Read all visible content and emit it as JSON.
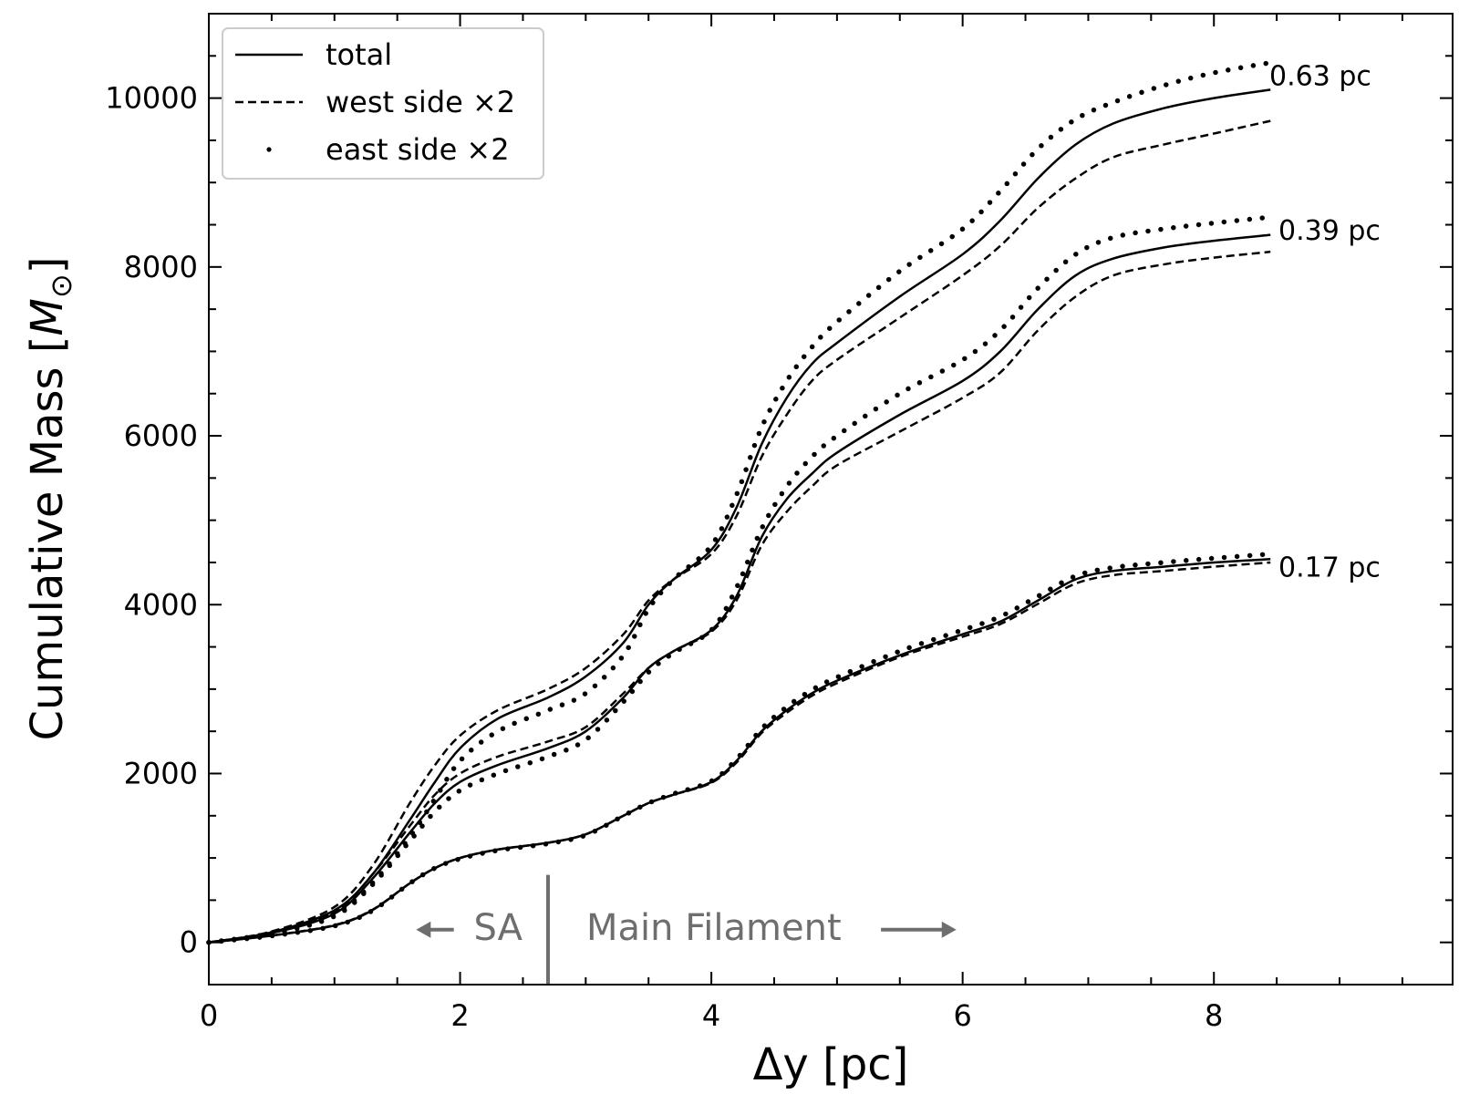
{
  "chart_data": {
    "type": "line",
    "title": "",
    "xlabel": "Δy  [pc]",
    "ylabel_main": "Cumulative Mass [",
    "ylabel_symbol": "M",
    "ylabel_sub": "⊙",
    "ylabel_end": "]",
    "xlim": [
      0,
      9.9
    ],
    "ylim": [
      -500,
      11000
    ],
    "x_ticks": [
      0,
      2,
      4,
      6,
      8
    ],
    "x_tick_labels": [
      "0",
      "2",
      "4",
      "6",
      "8"
    ],
    "x_minor_step": 0.5,
    "y_ticks": [
      0,
      2000,
      4000,
      6000,
      8000,
      10000
    ],
    "y_tick_labels": [
      "0",
      "2000",
      "4000",
      "6000",
      "8000",
      "10000"
    ],
    "y_minor_step": 500,
    "legend": {
      "placement": "top-left",
      "entries": [
        {
          "label": "total",
          "style": "solid"
        },
        {
          "label": "west side ×2",
          "style": "dashed"
        },
        {
          "label": "east side ×2",
          "style": "dotted"
        }
      ]
    },
    "groups": [
      {
        "label": "0.63 pc",
        "series": [
          {
            "name": "total",
            "style": "solid",
            "x": [
              0,
              0.5,
              1.0,
              1.3,
              1.6,
              1.8,
              2.0,
              2.3,
              2.7,
              3.0,
              3.3,
              3.5,
              3.7,
              4.0,
              4.2,
              4.4,
              4.6,
              4.8,
              5.0,
              5.5,
              6.0,
              6.3,
              6.6,
              6.9,
              7.2,
              7.6,
              8.0,
              8.45
            ],
            "y": [
              0,
              120,
              380,
              800,
              1450,
              1900,
              2300,
              2650,
              2900,
              3150,
              3550,
              4000,
              4300,
              4650,
              5150,
              5900,
              6450,
              6850,
              7100,
              7650,
              8150,
              8550,
              9050,
              9450,
              9700,
              9880,
              10000,
              10100
            ]
          },
          {
            "name": "west side ×2",
            "style": "dashed",
            "x": [
              0,
              0.5,
              1.0,
              1.3,
              1.6,
              1.8,
              2.0,
              2.3,
              2.7,
              3.0,
              3.3,
              3.5,
              3.7,
              4.0,
              4.2,
              4.4,
              4.6,
              4.8,
              5.0,
              5.5,
              6.0,
              6.3,
              6.6,
              6.9,
              7.2,
              7.6,
              8.0,
              8.45
            ],
            "y": [
              0,
              130,
              420,
              900,
              1650,
              2100,
              2450,
              2750,
              3000,
              3250,
              3650,
              4050,
              4300,
              4600,
              5050,
              5750,
              6250,
              6650,
              6900,
              7400,
              7900,
              8250,
              8700,
              9050,
              9300,
              9450,
              9580,
              9730
            ]
          },
          {
            "name": "east side ×2",
            "style": "dotted",
            "x": [
              0,
              0.5,
              1.0,
              1.3,
              1.6,
              1.8,
              2.0,
              2.3,
              2.7,
              3.0,
              3.3,
              3.5,
              3.7,
              4.0,
              4.2,
              4.4,
              4.6,
              4.8,
              5.0,
              5.5,
              6.0,
              6.3,
              6.6,
              6.9,
              7.2,
              7.6,
              8.0,
              8.45
            ],
            "y": [
              0,
              110,
              340,
              700,
              1250,
              1700,
              2150,
              2500,
              2750,
              2950,
              3400,
              3950,
              4300,
              4700,
              5300,
              6100,
              6650,
              7050,
              7350,
              7950,
              8450,
              8900,
              9400,
              9750,
              9950,
              10150,
              10300,
              10420
            ]
          }
        ]
      },
      {
        "label": "0.39 pc",
        "series": [
          {
            "name": "total",
            "style": "solid",
            "x": [
              0,
              0.5,
              1.0,
              1.3,
              1.6,
              1.8,
              2.0,
              2.3,
              2.7,
              3.0,
              3.3,
              3.5,
              3.7,
              4.0,
              4.2,
              4.4,
              4.6,
              4.8,
              5.0,
              5.5,
              6.0,
              6.3,
              6.6,
              6.9,
              7.2,
              7.6,
              8.0,
              8.45
            ],
            "y": [
              0,
              110,
              340,
              750,
              1300,
              1650,
              1900,
              2100,
              2300,
              2500,
              2900,
              3250,
              3450,
              3700,
              4100,
              4800,
              5250,
              5550,
              5800,
              6250,
              6650,
              7000,
              7500,
              7900,
              8100,
              8230,
              8310,
              8380
            ]
          },
          {
            "name": "west side ×2",
            "style": "dashed",
            "x": [
              0,
              0.5,
              1.0,
              1.3,
              1.6,
              1.8,
              2.0,
              2.3,
              2.7,
              3.0,
              3.3,
              3.5,
              3.7,
              4.0,
              4.2,
              4.4,
              4.6,
              4.8,
              5.0,
              5.5,
              6.0,
              6.3,
              6.6,
              6.9,
              7.2,
              7.6,
              8.0,
              8.45
            ],
            "y": [
              0,
              115,
              360,
              800,
              1380,
              1750,
              2000,
              2200,
              2380,
              2550,
              2950,
              3250,
              3450,
              3680,
              4050,
              4700,
              5100,
              5400,
              5650,
              6050,
              6450,
              6750,
              7250,
              7650,
              7900,
              8030,
              8110,
              8180
            ]
          },
          {
            "name": "east side ×2",
            "style": "dotted",
            "x": [
              0,
              0.5,
              1.0,
              1.3,
              1.6,
              1.8,
              2.0,
              2.3,
              2.7,
              3.0,
              3.3,
              3.5,
              3.7,
              4.0,
              4.2,
              4.4,
              4.6,
              4.8,
              5.0,
              5.5,
              6.0,
              6.3,
              6.6,
              6.9,
              7.2,
              7.6,
              8.0,
              8.45
            ],
            "y": [
              0,
              100,
              310,
              680,
              1200,
              1550,
              1800,
              2000,
              2200,
              2400,
              2850,
              3200,
              3430,
              3700,
              4200,
              4900,
              5400,
              5750,
              6000,
              6500,
              6900,
              7250,
              7750,
              8150,
              8350,
              8450,
              8520,
              8590
            ]
          }
        ]
      },
      {
        "label": "0.17 pc",
        "series": [
          {
            "name": "total",
            "style": "solid",
            "x": [
              0,
              0.5,
              1.0,
              1.3,
              1.6,
              1.8,
              2.0,
              2.3,
              2.7,
              3.0,
              3.3,
              3.5,
              3.7,
              4.0,
              4.2,
              4.4,
              4.6,
              4.8,
              5.0,
              5.5,
              6.0,
              6.3,
              6.6,
              6.9,
              7.2,
              7.6,
              8.0,
              8.45
            ],
            "y": [
              0,
              80,
              200,
              380,
              700,
              880,
              1000,
              1100,
              1180,
              1280,
              1500,
              1650,
              1750,
              1900,
              2150,
              2500,
              2750,
              2950,
              3100,
              3400,
              3650,
              3800,
              4050,
              4300,
              4400,
              4450,
              4500,
              4540
            ]
          },
          {
            "name": "west side ×2",
            "style": "dashed",
            "x": [
              0,
              0.5,
              1.0,
              1.3,
              1.6,
              1.8,
              2.0,
              2.3,
              2.7,
              3.0,
              3.3,
              3.5,
              3.7,
              4.0,
              4.2,
              4.4,
              4.6,
              4.8,
              5.0,
              5.5,
              6.0,
              6.3,
              6.6,
              6.9,
              7.2,
              7.6,
              8.0,
              8.45
            ],
            "y": [
              0,
              82,
              205,
              385,
              700,
              880,
              1000,
              1100,
              1180,
              1280,
              1500,
              1650,
              1750,
              1890,
              2130,
              2480,
              2720,
              2920,
              3070,
              3380,
              3620,
              3770,
              4010,
              4250,
              4350,
              4400,
              4450,
              4500
            ]
          },
          {
            "name": "east side ×2",
            "style": "dotted",
            "x": [
              0,
              0.5,
              1.0,
              1.3,
              1.6,
              1.8,
              2.0,
              2.3,
              2.7,
              3.0,
              3.3,
              3.5,
              3.7,
              4.0,
              4.2,
              4.4,
              4.6,
              4.8,
              5.0,
              5.5,
              6.0,
              6.3,
              6.6,
              6.9,
              7.2,
              7.6,
              8.0,
              8.45
            ],
            "y": [
              0,
              78,
              195,
              375,
              700,
              880,
              990,
              1090,
              1170,
              1270,
              1500,
              1650,
              1760,
              1910,
              2170,
              2530,
              2790,
              2990,
              3140,
              3450,
              3700,
              3860,
              4100,
              4340,
              4440,
              4500,
              4550,
              4600
            ]
          }
        ]
      }
    ],
    "annotations": {
      "divider_x": 2.7,
      "divider_y_range": [
        -500,
        800
      ],
      "left_region_label": "SA",
      "right_region_label": "Main Filament",
      "label_y": 150,
      "left_arrow_x": [
        1.65,
        1.95
      ],
      "right_arrow_x": [
        5.35,
        5.95
      ],
      "annotation_color": "#6e6e6e"
    }
  }
}
